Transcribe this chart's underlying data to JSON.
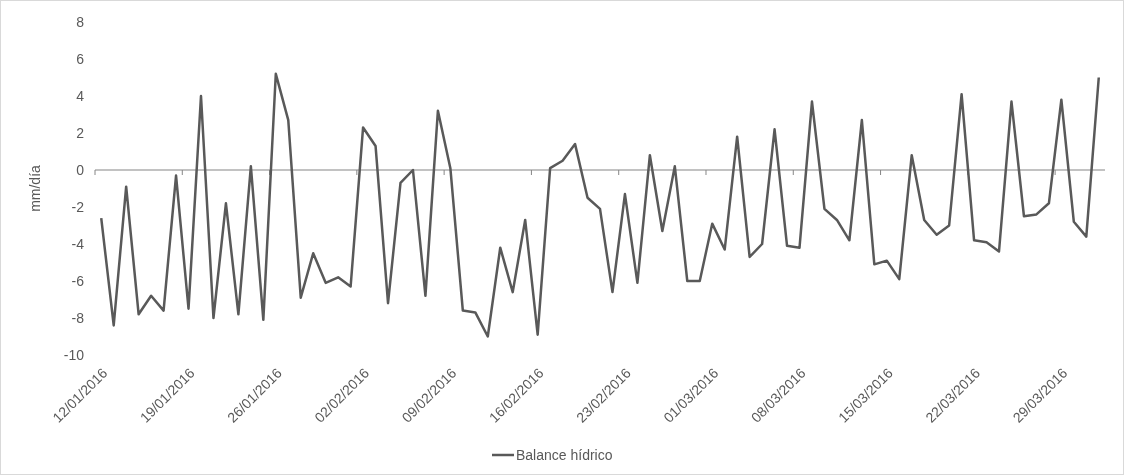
{
  "chart_data": {
    "type": "line",
    "ylabel": "mm/día",
    "categories": [
      "12/01/2016",
      null,
      null,
      null,
      null,
      null,
      null,
      "19/01/2016",
      null,
      null,
      null,
      null,
      null,
      null,
      "26/01/2016",
      null,
      null,
      null,
      null,
      null,
      null,
      "02/02/2016",
      null,
      null,
      null,
      null,
      null,
      null,
      "09/02/2016",
      null,
      null,
      null,
      null,
      null,
      null,
      "16/02/2016",
      null,
      null,
      null,
      null,
      null,
      null,
      "23/02/2016",
      null,
      null,
      null,
      null,
      null,
      null,
      "01/03/2016",
      null,
      null,
      null,
      null,
      null,
      null,
      "08/03/2016",
      null,
      null,
      null,
      null,
      null,
      null,
      "15/03/2016",
      null,
      null,
      null,
      null,
      null,
      null,
      "22/03/2016",
      null,
      null,
      null,
      null,
      null,
      null,
      "29/03/2016",
      null,
      null,
      null
    ],
    "series": [
      {
        "name": "Balance hídrico",
        "color": "#595959",
        "values": [
          -2.6,
          -8.4,
          -0.9,
          -7.8,
          -6.8,
          -7.6,
          -0.3,
          -7.5,
          4.0,
          -8.0,
          -1.8,
          -7.8,
          0.2,
          -8.1,
          5.2,
          2.7,
          -6.9,
          -4.5,
          -6.1,
          -5.8,
          -6.3,
          2.3,
          1.3,
          -7.2,
          -0.7,
          0.0,
          -6.8,
          3.2,
          0.1,
          -7.6,
          -7.7,
          -9.0,
          -4.2,
          -6.6,
          -2.7,
          -8.9,
          0.1,
          0.5,
          1.4,
          -1.5,
          -2.1,
          -6.6,
          -1.3,
          -6.1,
          0.8,
          -3.3,
          0.2,
          -6.0,
          -6.0,
          -2.9,
          -4.3,
          1.8,
          -4.7,
          -4.0,
          2.2,
          -4.1,
          -4.2,
          3.7,
          -2.1,
          -2.7,
          -3.8,
          2.7,
          -5.1,
          -4.9,
          -5.9,
          0.8,
          -2.7,
          -3.5,
          -3.0,
          4.1,
          -3.8,
          -3.9,
          -4.4,
          3.7,
          -2.5,
          -2.4,
          -1.8,
          3.8,
          -2.8,
          -3.6,
          5.0
        ]
      }
    ],
    "ylim": [
      -10,
      8
    ],
    "yticks": [
      -10,
      -8,
      -6,
      -4,
      -2,
      0,
      2,
      4,
      6,
      8
    ],
    "legend": "bottom",
    "marker": "none",
    "line_style": "solid"
  }
}
